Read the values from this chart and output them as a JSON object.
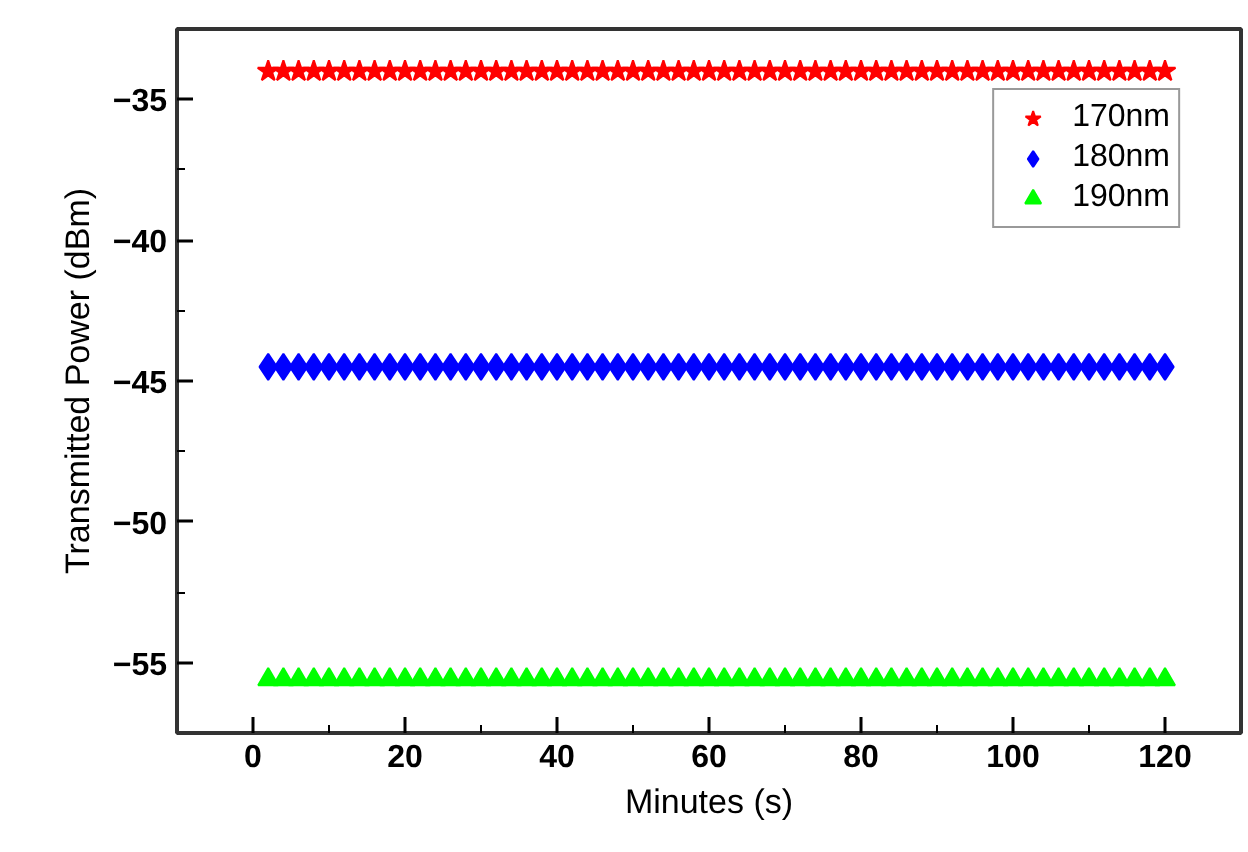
{
  "chart_data": {
    "type": "scatter",
    "xlabel": "Minutes (s)",
    "ylabel": "Transmitted Power (dBm)",
    "x": [
      2,
      4,
      6,
      8,
      10,
      12,
      14,
      16,
      18,
      20,
      22,
      24,
      26,
      28,
      30,
      32,
      34,
      36,
      38,
      40,
      42,
      44,
      46,
      48,
      50,
      52,
      54,
      56,
      58,
      60,
      62,
      64,
      66,
      68,
      70,
      72,
      74,
      76,
      78,
      80,
      82,
      84,
      86,
      88,
      90,
      92,
      94,
      96,
      98,
      100,
      102,
      104,
      106,
      108,
      110,
      112,
      114,
      116,
      118,
      120
    ],
    "series": [
      {
        "name": "170nm",
        "color": "#ff0000",
        "marker": "star",
        "values": [
          -34,
          -34,
          -34,
          -34,
          -34,
          -34,
          -34,
          -34,
          -34,
          -34,
          -34,
          -34,
          -34,
          -34,
          -34,
          -34,
          -34,
          -34,
          -34,
          -34,
          -34,
          -34,
          -34,
          -34,
          -34,
          -34,
          -34,
          -34,
          -34,
          -34,
          -34,
          -34,
          -34,
          -34,
          -34,
          -34,
          -34,
          -34,
          -34,
          -34,
          -34,
          -34,
          -34,
          -34,
          -34,
          -34,
          -34,
          -34,
          -34,
          -34,
          -34,
          -34,
          -34,
          -34,
          -34,
          -34,
          -34,
          -34,
          -34,
          -34
        ]
      },
      {
        "name": "180nm",
        "color": "#0000ff",
        "marker": "diamond",
        "values": [
          -44.5,
          -44.5,
          -44.5,
          -44.5,
          -44.5,
          -44.5,
          -44.5,
          -44.5,
          -44.5,
          -44.5,
          -44.5,
          -44.5,
          -44.5,
          -44.5,
          -44.5,
          -44.5,
          -44.5,
          -44.5,
          -44.5,
          -44.5,
          -44.5,
          -44.5,
          -44.5,
          -44.5,
          -44.5,
          -44.5,
          -44.5,
          -44.5,
          -44.5,
          -44.5,
          -44.5,
          -44.5,
          -44.5,
          -44.5,
          -44.5,
          -44.5,
          -44.5,
          -44.5,
          -44.5,
          -44.5,
          -44.5,
          -44.5,
          -44.5,
          -44.5,
          -44.5,
          -44.5,
          -44.5,
          -44.5,
          -44.5,
          -44.5,
          -44.5,
          -44.5,
          -44.5,
          -44.5,
          -44.5,
          -44.5,
          -44.5,
          -44.5,
          -44.5,
          -44.5
        ]
      },
      {
        "name": "190nm",
        "color": "#00ff00",
        "marker": "triangle",
        "values": [
          -55.6,
          -55.6,
          -55.6,
          -55.6,
          -55.6,
          -55.6,
          -55.6,
          -55.6,
          -55.6,
          -55.6,
          -55.6,
          -55.6,
          -55.6,
          -55.6,
          -55.6,
          -55.6,
          -55.6,
          -55.6,
          -55.6,
          -55.6,
          -55.6,
          -55.6,
          -55.6,
          -55.6,
          -55.6,
          -55.6,
          -55.6,
          -55.6,
          -55.6,
          -55.6,
          -55.6,
          -55.6,
          -55.6,
          -55.6,
          -55.6,
          -55.6,
          -55.6,
          -55.6,
          -55.6,
          -55.6,
          -55.6,
          -55.6,
          -55.6,
          -55.6,
          -55.6,
          -55.6,
          -55.6,
          -55.6,
          -55.6,
          -55.6,
          -55.6,
          -55.6,
          -55.6,
          -55.6,
          -55.6,
          -55.6,
          -55.6,
          -55.6,
          -55.6,
          -55.6
        ]
      }
    ],
    "xlim": [
      -10,
      130
    ],
    "xticks": [
      0,
      20,
      40,
      60,
      80,
      100,
      120
    ],
    "ylim": [
      -57.5,
      -32.5
    ],
    "yticks": [
      -55,
      -50,
      -45,
      -40,
      -35
    ],
    "grid": false,
    "legend": "top right"
  }
}
